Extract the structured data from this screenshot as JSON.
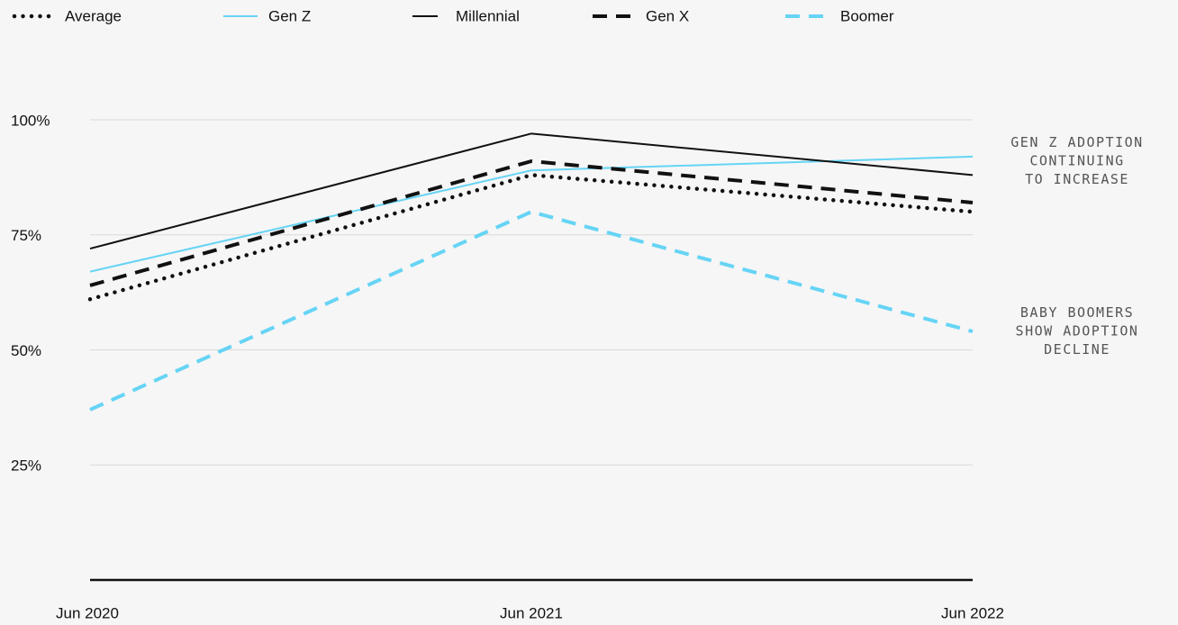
{
  "chart_data": {
    "type": "line",
    "categories": [
      "Jun 2020",
      "Jun 2021",
      "Jun 2022"
    ],
    "series": [
      {
        "name": "Average",
        "color": "#111111",
        "dash": "dotted",
        "values": [
          61,
          88,
          80
        ]
      },
      {
        "name": "Gen Z",
        "color": "#66d4f5",
        "dash": "solid",
        "values": [
          67,
          89,
          92
        ]
      },
      {
        "name": "Millennial",
        "color": "#111111",
        "dash": "solid",
        "values": [
          72,
          97,
          88
        ]
      },
      {
        "name": "Gen X",
        "color": "#111111",
        "dash": "dashed",
        "values": [
          64,
          91,
          82
        ]
      },
      {
        "name": "Boomer",
        "color": "#66d4f5",
        "dash": "dashed",
        "values": [
          37,
          80,
          54
        ]
      }
    ],
    "ylim": [
      0,
      100
    ],
    "yticks": [
      {
        "value": 25,
        "label": "25%"
      },
      {
        "value": 50,
        "label": "50%"
      },
      {
        "value": 75,
        "label": "75%"
      },
      {
        "value": 100,
        "label": "100%"
      }
    ],
    "grid": true,
    "legend": "top",
    "annotations": [
      {
        "lines": [
          "GEN Z ADOPTION",
          "CONTINUING",
          "TO INCREASE"
        ],
        "y": 91
      },
      {
        "lines": [
          "BABY BOOMERS",
          "SHOW ADOPTION",
          "DECLINE"
        ],
        "y": 54
      }
    ]
  }
}
